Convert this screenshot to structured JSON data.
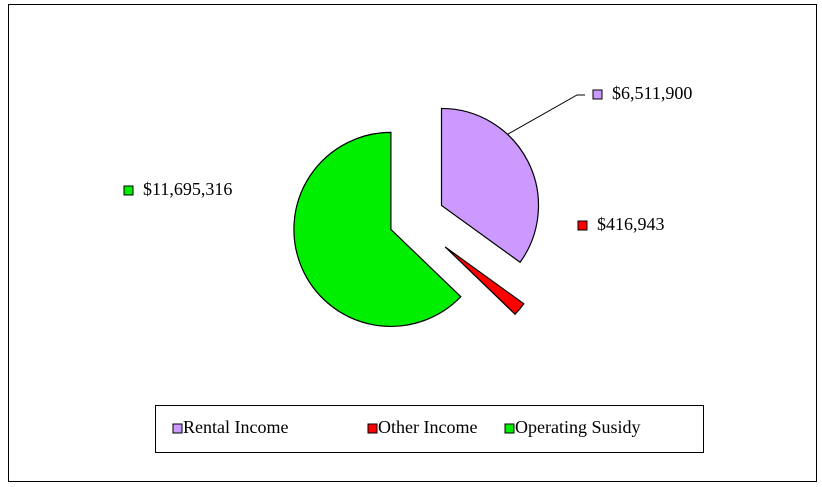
{
  "chart_data": {
    "type": "pie",
    "categories": [
      "Rental Income",
      "Other Income",
      "Operating Susidy"
    ],
    "values": [
      6511900,
      416943,
      11695316
    ],
    "value_labels": [
      "$6,511,900",
      "$416,943",
      "$11,695,316"
    ],
    "colors": [
      "#cc99ff",
      "#ff0000",
      "#00ee00"
    ],
    "legend": "bottom"
  }
}
